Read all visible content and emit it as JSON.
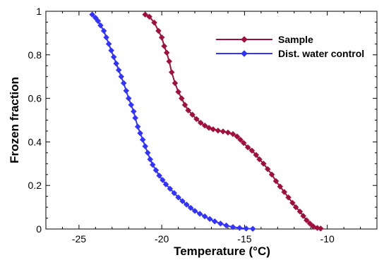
{
  "chart_data": {
    "type": "line",
    "xlabel": "Temperature (°C)",
    "ylabel": "Frozen fraction",
    "xlim": [
      -27,
      -7
    ],
    "ylim": [
      0,
      1
    ],
    "x_ticks": [
      -25,
      -20,
      -15,
      -10
    ],
    "y_ticks": [
      0,
      0.2,
      0.4,
      0.6,
      0.8,
      1
    ],
    "x_tick_labels": [
      "-25",
      "-20",
      "-15",
      "-10"
    ],
    "y_tick_labels": [
      "0",
      "0.2",
      "0.4",
      "0.6",
      "0.8",
      "1"
    ],
    "legend_position": "top-right",
    "grid": false,
    "series": [
      {
        "name": "Sample",
        "color": "#a0103c",
        "marker": "diamond",
        "points": [
          [
            -21.0,
            0.985
          ],
          [
            -20.75,
            0.975
          ],
          [
            -20.45,
            0.948
          ],
          [
            -20.2,
            0.91
          ],
          [
            -20.0,
            0.88
          ],
          [
            -19.85,
            0.84
          ],
          [
            -19.7,
            0.81
          ],
          [
            -19.55,
            0.77
          ],
          [
            -19.4,
            0.72
          ],
          [
            -19.2,
            0.67
          ],
          [
            -19.0,
            0.63
          ],
          [
            -18.8,
            0.6
          ],
          [
            -18.6,
            0.57
          ],
          [
            -18.4,
            0.545
          ],
          [
            -18.15,
            0.525
          ],
          [
            -17.9,
            0.505
          ],
          [
            -17.65,
            0.488
          ],
          [
            -17.4,
            0.475
          ],
          [
            -17.15,
            0.465
          ],
          [
            -16.9,
            0.458
          ],
          [
            -16.6,
            0.452
          ],
          [
            -16.3,
            0.448
          ],
          [
            -16.0,
            0.443
          ],
          [
            -15.7,
            0.436
          ],
          [
            -15.45,
            0.425
          ],
          [
            -15.25,
            0.41
          ],
          [
            -15.05,
            0.395
          ],
          [
            -14.8,
            0.375
          ],
          [
            -14.55,
            0.36
          ],
          [
            -14.3,
            0.34
          ],
          [
            -14.1,
            0.32
          ],
          [
            -13.85,
            0.3
          ],
          [
            -13.6,
            0.275
          ],
          [
            -13.35,
            0.25
          ],
          [
            -13.1,
            0.22
          ],
          [
            -12.85,
            0.195
          ],
          [
            -12.6,
            0.17
          ],
          [
            -12.35,
            0.145
          ],
          [
            -12.1,
            0.12
          ],
          [
            -11.9,
            0.1
          ],
          [
            -11.65,
            0.08
          ],
          [
            -11.45,
            0.06
          ],
          [
            -11.25,
            0.04
          ],
          [
            -11.05,
            0.025
          ],
          [
            -10.85,
            0.012
          ],
          [
            -10.6,
            0.005
          ],
          [
            -10.4,
            0.002
          ]
        ]
      },
      {
        "name": "Dist. water control",
        "color": "#3333ff",
        "marker": "diamond",
        "points": [
          [
            -24.2,
            0.985
          ],
          [
            -24.0,
            0.97
          ],
          [
            -23.85,
            0.955
          ],
          [
            -23.7,
            0.935
          ],
          [
            -23.5,
            0.91
          ],
          [
            -23.35,
            0.88
          ],
          [
            -23.2,
            0.85
          ],
          [
            -23.05,
            0.82
          ],
          [
            -22.9,
            0.79
          ],
          [
            -22.75,
            0.76
          ],
          [
            -22.6,
            0.73
          ],
          [
            -22.45,
            0.7
          ],
          [
            -22.3,
            0.67
          ],
          [
            -22.15,
            0.635
          ],
          [
            -22.0,
            0.6
          ],
          [
            -21.85,
            0.57
          ],
          [
            -21.7,
            0.54
          ],
          [
            -21.6,
            0.51
          ],
          [
            -21.45,
            0.47
          ],
          [
            -21.3,
            0.44
          ],
          [
            -21.15,
            0.41
          ],
          [
            -21.0,
            0.38
          ],
          [
            -20.85,
            0.35
          ],
          [
            -20.7,
            0.32
          ],
          [
            -20.55,
            0.295
          ],
          [
            -20.35,
            0.27
          ],
          [
            -20.15,
            0.245
          ],
          [
            -19.95,
            0.225
          ],
          [
            -19.75,
            0.205
          ],
          [
            -19.5,
            0.185
          ],
          [
            -19.25,
            0.165
          ],
          [
            -19.0,
            0.145
          ],
          [
            -18.75,
            0.128
          ],
          [
            -18.5,
            0.112
          ],
          [
            -18.25,
            0.097
          ],
          [
            -18.0,
            0.083
          ],
          [
            -17.7,
            0.07
          ],
          [
            -17.4,
            0.058
          ],
          [
            -17.1,
            0.046
          ],
          [
            -16.8,
            0.035
          ],
          [
            -16.45,
            0.025
          ],
          [
            -16.1,
            0.016
          ],
          [
            -15.7,
            0.009
          ],
          [
            -15.3,
            0.005
          ],
          [
            -14.9,
            0.002
          ],
          [
            -14.5,
            0.001
          ]
        ]
      }
    ]
  }
}
